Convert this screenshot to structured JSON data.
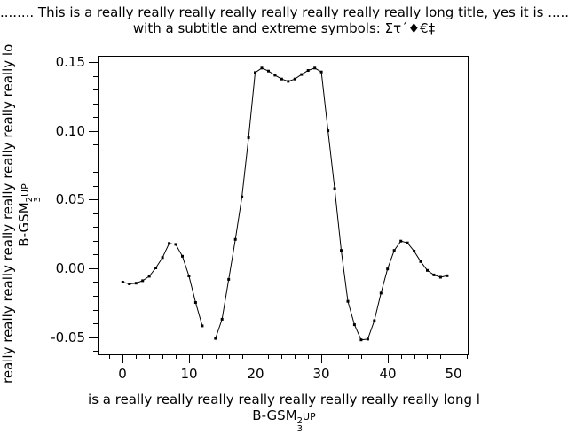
{
  "title": "........ This is a really really really really really really really really long title, yes it is .......",
  "subtitle": "with a subtitle and extreme symbols: Στ´♦€‡",
  "colors": {
    "background": "#ffffff",
    "foreground": "#000000"
  },
  "axes": {
    "y_label_text": "really really really really really really really really lo",
    "x_label_text": "is a really really really really really really really really long l",
    "formula": {
      "base": "B-GSM",
      "sup": "2",
      "sub": "3",
      "tail": "UP"
    },
    "y_ticks": {
      "values": [
        -0.05,
        0.0,
        0.05,
        0.1,
        0.15
      ],
      "labels": [
        "-0.05",
        "0.00",
        "0.05",
        "0.10",
        "0.15"
      ],
      "minor_step": 0.01
    },
    "x_ticks": {
      "values": [
        0,
        10,
        20,
        30,
        40,
        50
      ],
      "labels": [
        "0",
        "10",
        "20",
        "30",
        "40",
        "50"
      ],
      "minor_step": 2
    }
  },
  "chart_data": {
    "type": "line",
    "marker": "filled-square",
    "line_color": "#000000",
    "background": "#ffffff",
    "title": "........ This is a really really really really really really really really long title, yes it is .......",
    "subtitle": "with a subtitle and extreme symbols: Στ´♦€‡",
    "xlabel": "is a really really really really really really really really long l  /  B-GSM 2/3 UP",
    "ylabel": "really really really really really really really really lo  /  B-GSM 2/3 UP",
    "xlim": [
      -3.8,
      52.1
    ],
    "ylim": [
      -0.0625,
      0.1545
    ],
    "note": "point at x=13 is missing (gap in the line)",
    "x": [
      0,
      1,
      2,
      3,
      4,
      5,
      6,
      7,
      8,
      9,
      10,
      11,
      12,
      13,
      14,
      15,
      16,
      17,
      18,
      19,
      20,
      21,
      22,
      23,
      24,
      25,
      26,
      27,
      28,
      29,
      30,
      31,
      32,
      33,
      34,
      35,
      36,
      37,
      38,
      39,
      40,
      41,
      42,
      43,
      44,
      45,
      46,
      47,
      48,
      49
    ],
    "y": [
      -0.01,
      -0.0113,
      -0.0108,
      -0.009,
      -0.0058,
      0.0003,
      0.0078,
      0.0181,
      0.0174,
      0.0088,
      -0.0055,
      -0.0248,
      -0.0418,
      null,
      -0.051,
      -0.037,
      -0.008,
      0.021,
      0.052,
      0.095,
      0.1423,
      0.1456,
      0.1434,
      0.1404,
      0.1376,
      0.1359,
      0.1376,
      0.1409,
      0.1439,
      0.1456,
      0.1428,
      0.1,
      0.058,
      0.013,
      -0.024,
      -0.041,
      -0.052,
      -0.0515,
      -0.038,
      -0.018,
      -0.0005,
      0.013,
      0.0198,
      0.0185,
      0.0125,
      0.0049,
      -0.0015,
      -0.0048,
      -0.0065,
      -0.0054
    ]
  }
}
